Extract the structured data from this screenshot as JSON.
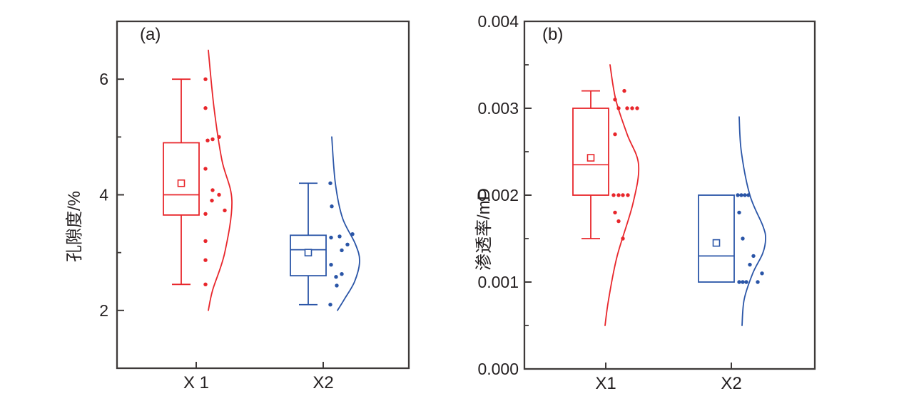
{
  "colors": {
    "red_series": "#e8262b",
    "blue_series": "#2a55a7",
    "frame": "#3e3a39",
    "text": "#231f20",
    "background": "#ffffff"
  },
  "chart_data": [
    {
      "type": "box",
      "style": "raincloud: box + whiskers + open-square mean + jittered points + right-side half-violin curve",
      "panel_label": "(a)",
      "ylabel": "孔隙度/%",
      "ylim": [
        1,
        7
      ],
      "grid": false,
      "legend": "none",
      "yticks": [
        {
          "v": 2,
          "label": "2"
        },
        {
          "v": 4,
          "label": "4"
        },
        {
          "v": 6,
          "label": "6"
        }
      ],
      "minor_yticks": [
        3,
        5
      ],
      "categories": [
        "X 1",
        "X2"
      ],
      "series": [
        {
          "name": "X 1",
          "color": "#e8262b",
          "box": {
            "whisker_low": 2.45,
            "q1": 3.65,
            "median": 4.0,
            "mean": 4.2,
            "q3": 4.9,
            "whisker_high": 6.0
          },
          "points": [
            [
              6.0,
              13
            ],
            [
              5.5,
              13
            ],
            [
              4.94,
              16
            ],
            [
              4.96,
              23
            ],
            [
              5.0,
              32
            ],
            [
              4.45,
              13
            ],
            [
              4.08,
              23
            ],
            [
              4.0,
              32
            ],
            [
              3.9,
              22
            ],
            [
              3.73,
              40
            ],
            [
              3.67,
              13
            ],
            [
              3.2,
              13
            ],
            [
              2.87,
              13
            ],
            [
              2.45,
              13
            ]
          ],
          "curve": [
            [
              17,
              6.5
            ],
            [
              25,
              5.5
            ],
            [
              36,
              4.6
            ],
            [
              50,
              3.9
            ],
            [
              40,
              3.0
            ],
            [
              23,
              2.35
            ],
            [
              17,
              2.0
            ]
          ]
        },
        {
          "name": "X2",
          "color": "#2a55a7",
          "box": {
            "whisker_low": 2.1,
            "q1": 2.6,
            "median": 3.05,
            "mean": 3.0,
            "q3": 3.3,
            "whisker_high": 4.2
          },
          "points": [
            [
              4.2,
              10
            ],
            [
              3.8,
              12
            ],
            [
              3.32,
              41
            ],
            [
              3.28,
              23
            ],
            [
              3.26,
              11
            ],
            [
              3.14,
              34
            ],
            [
              3.04,
              26
            ],
            [
              2.79,
              11
            ],
            [
              2.63,
              26
            ],
            [
              2.58,
              18
            ],
            [
              2.43,
              19
            ],
            [
              2.1,
              10
            ]
          ],
          "curve": [
            [
              12,
              5.0
            ],
            [
              17,
              4.2
            ],
            [
              27,
              3.6
            ],
            [
              45,
              3.15
            ],
            [
              51,
              2.85
            ],
            [
              44,
              2.5
            ],
            [
              30,
              2.2
            ],
            [
              20,
              2.0
            ]
          ]
        }
      ]
    },
    {
      "type": "box",
      "style": "raincloud: box + whiskers + open-square mean + jittered points + right-side half-violin curve",
      "panel_label": "(b)",
      "ylabel": "渗透率/mD",
      "ylim": [
        0,
        0.004
      ],
      "grid": false,
      "legend": "none",
      "yticks": [
        {
          "v": 0,
          "label": "0.000"
        },
        {
          "v": 0.001,
          "label": "0.001"
        },
        {
          "v": 0.002,
          "label": "0.002"
        },
        {
          "v": 0.003,
          "label": "0.003"
        },
        {
          "v": 0.004,
          "label": "0.004"
        }
      ],
      "minor_yticks": [
        0.0005,
        0.0015,
        0.0025,
        0.0035
      ],
      "categories": [
        "X1",
        "X2"
      ],
      "series": [
        {
          "name": "X1",
          "color": "#e8262b",
          "box": {
            "whisker_low": 0.0015,
            "q1": 0.002,
            "median": 0.00235,
            "mean": 0.00243,
            "q3": 0.003,
            "whisker_high": 0.0032
          },
          "points": [
            [
              0.0032,
              26
            ],
            [
              0.0031,
              13
            ],
            [
              0.003,
              18
            ],
            [
              0.003,
              30
            ],
            [
              0.003,
              37
            ],
            [
              0.003,
              44
            ],
            [
              0.0027,
              13
            ],
            [
              0.002,
              11
            ],
            [
              0.002,
              18
            ],
            [
              0.002,
              24
            ],
            [
              0.002,
              31
            ],
            [
              0.0018,
              13
            ],
            [
              0.0017,
              18
            ],
            [
              0.0015,
              24
            ]
          ],
          "curve": [
            [
              6,
              0.0035
            ],
            [
              14,
              0.0031
            ],
            [
              30,
              0.0027
            ],
            [
              46,
              0.00235
            ],
            [
              38,
              0.0019
            ],
            [
              16,
              0.0013
            ],
            [
              4,
              0.0008
            ],
            [
              -1,
              0.0005
            ]
          ]
        },
        {
          "name": "X2",
          "color": "#2a55a7",
          "box": {
            "whisker_low": null,
            "q1": 0.001,
            "median": 0.0013,
            "mean": 0.00145,
            "q3": 0.002,
            "whisker_high": null
          },
          "points": [
            [
              0.002,
              9
            ],
            [
              0.002,
              14
            ],
            [
              0.002,
              19
            ],
            [
              0.002,
              24
            ],
            [
              0.0018,
              11
            ],
            [
              0.0015,
              16
            ],
            [
              0.0013,
              31
            ],
            [
              0.0012,
              26
            ],
            [
              0.0011,
              43
            ],
            [
              0.001,
              11
            ],
            [
              0.001,
              16
            ],
            [
              0.001,
              21
            ],
            [
              0.001,
              37
            ]
          ],
          "curve": [
            [
              11,
              0.0029
            ],
            [
              14,
              0.0025
            ],
            [
              26,
              0.002
            ],
            [
              44,
              0.00165
            ],
            [
              48,
              0.0015
            ],
            [
              44,
              0.00133
            ],
            [
              30,
              0.0011
            ],
            [
              18,
              0.0008
            ],
            [
              15,
              0.0005
            ]
          ]
        }
      ]
    }
  ]
}
